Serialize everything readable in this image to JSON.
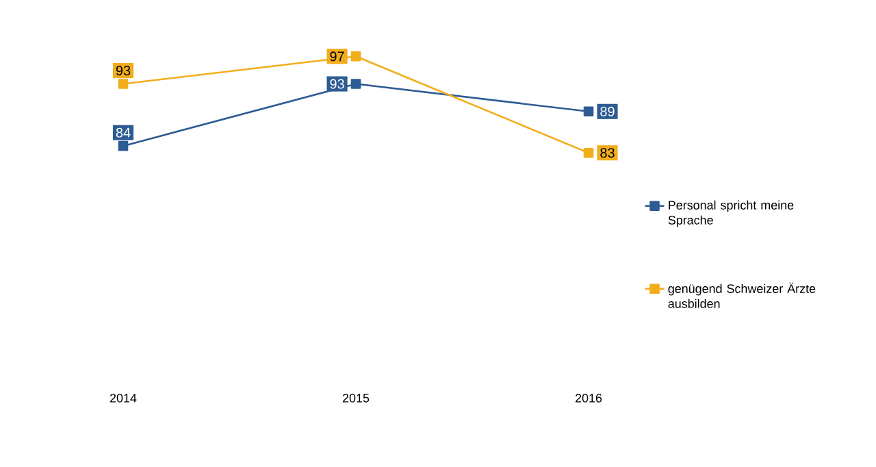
{
  "chart_data": {
    "type": "line",
    "categories": [
      "2014",
      "2015",
      "2016"
    ],
    "series": [
      {
        "name": "Personal spricht meine Sprache",
        "color": "#2d5b93",
        "values": [
          84,
          93,
          89
        ]
      },
      {
        "name": "genügend Schweizer Ärzte ausbilden",
        "color": "#f2ad1c",
        "values": [
          93,
          97,
          83
        ]
      }
    ],
    "data_labels": true,
    "marker": "square",
    "line_style": "solid",
    "legend": "right"
  }
}
